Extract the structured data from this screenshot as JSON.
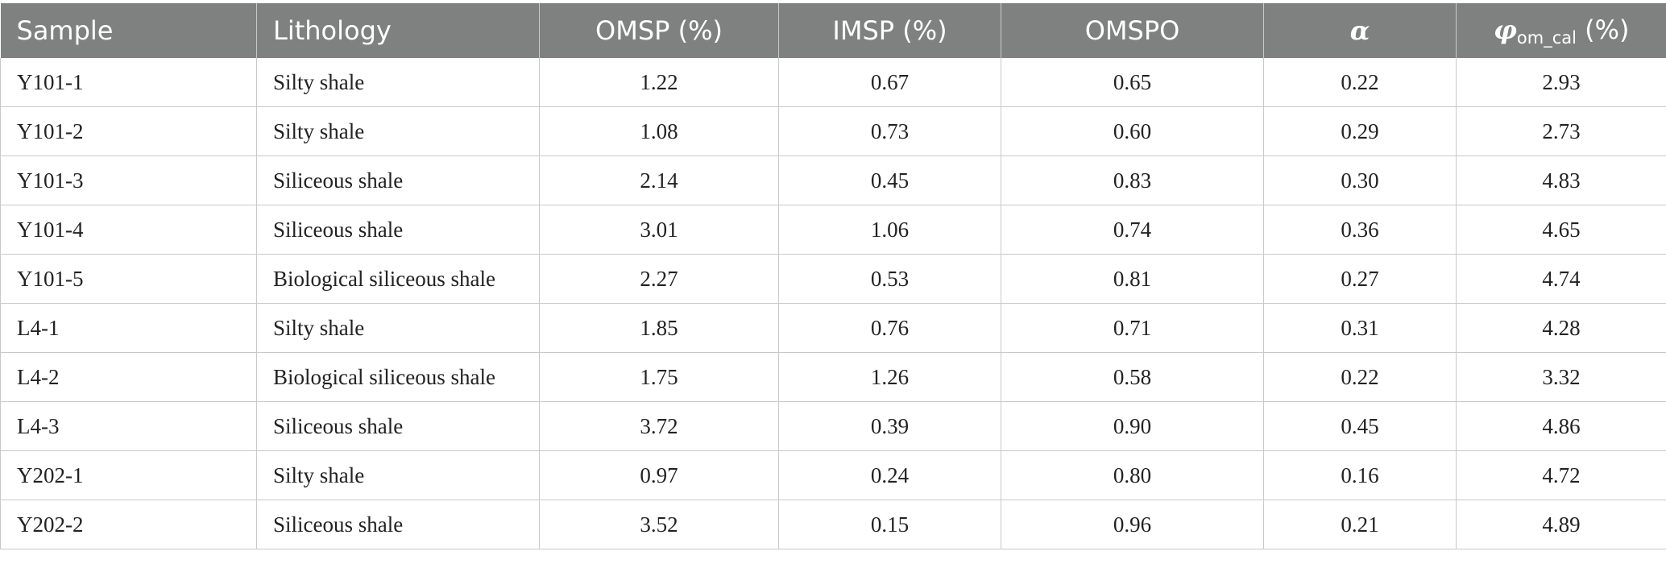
{
  "table": {
    "headers": {
      "sample": "Sample",
      "lithology": "Lithology",
      "omsp": "OMSP (%)",
      "imsp": "IMSP (%)",
      "omspo": "OMSPO",
      "alpha": "α",
      "phi_symbol": "φ",
      "phi_subscript": "om_cal",
      "phi_unit": " (%)"
    },
    "rows": [
      {
        "sample": "Y101-1",
        "lithology": "Silty shale",
        "omsp": "1.22",
        "imsp": "0.67",
        "omspo": "0.65",
        "alpha": "0.22",
        "phi": "2.93"
      },
      {
        "sample": "Y101-2",
        "lithology": "Silty shale",
        "omsp": "1.08",
        "imsp": "0.73",
        "omspo": "0.60",
        "alpha": "0.29",
        "phi": "2.73"
      },
      {
        "sample": "Y101-3",
        "lithology": "Siliceous shale",
        "omsp": "2.14",
        "imsp": "0.45",
        "omspo": "0.83",
        "alpha": "0.30",
        "phi": "4.83"
      },
      {
        "sample": "Y101-4",
        "lithology": "Siliceous shale",
        "omsp": "3.01",
        "imsp": "1.06",
        "omspo": "0.74",
        "alpha": "0.36",
        "phi": "4.65"
      },
      {
        "sample": "Y101-5",
        "lithology": "Biological siliceous shale",
        "omsp": "2.27",
        "imsp": "0.53",
        "omspo": "0.81",
        "alpha": "0.27",
        "phi": "4.74"
      },
      {
        "sample": "L4-1",
        "lithology": "Silty shale",
        "omsp": "1.85",
        "imsp": "0.76",
        "omspo": "0.71",
        "alpha": "0.31",
        "phi": "4.28"
      },
      {
        "sample": "L4-2",
        "lithology": "Biological siliceous shale",
        "omsp": "1.75",
        "imsp": "1.26",
        "omspo": "0.58",
        "alpha": "0.22",
        "phi": "3.32"
      },
      {
        "sample": "L4-3",
        "lithology": "Siliceous shale",
        "omsp": "3.72",
        "imsp": "0.39",
        "omspo": "0.90",
        "alpha": "0.45",
        "phi": "4.86"
      },
      {
        "sample": "Y202-1",
        "lithology": "Silty shale",
        "omsp": "0.97",
        "imsp": "0.24",
        "omspo": "0.80",
        "alpha": "0.16",
        "phi": "4.72"
      },
      {
        "sample": "Y202-2",
        "lithology": "Siliceous shale",
        "omsp": "3.52",
        "imsp": "0.15",
        "omspo": "0.96",
        "alpha": "0.21",
        "phi": "4.89"
      }
    ]
  },
  "colors": {
    "header_bg": "#7f8180",
    "header_text": "#ffffff",
    "grid": "#c9c9c9",
    "cell_text": "#222222"
  }
}
